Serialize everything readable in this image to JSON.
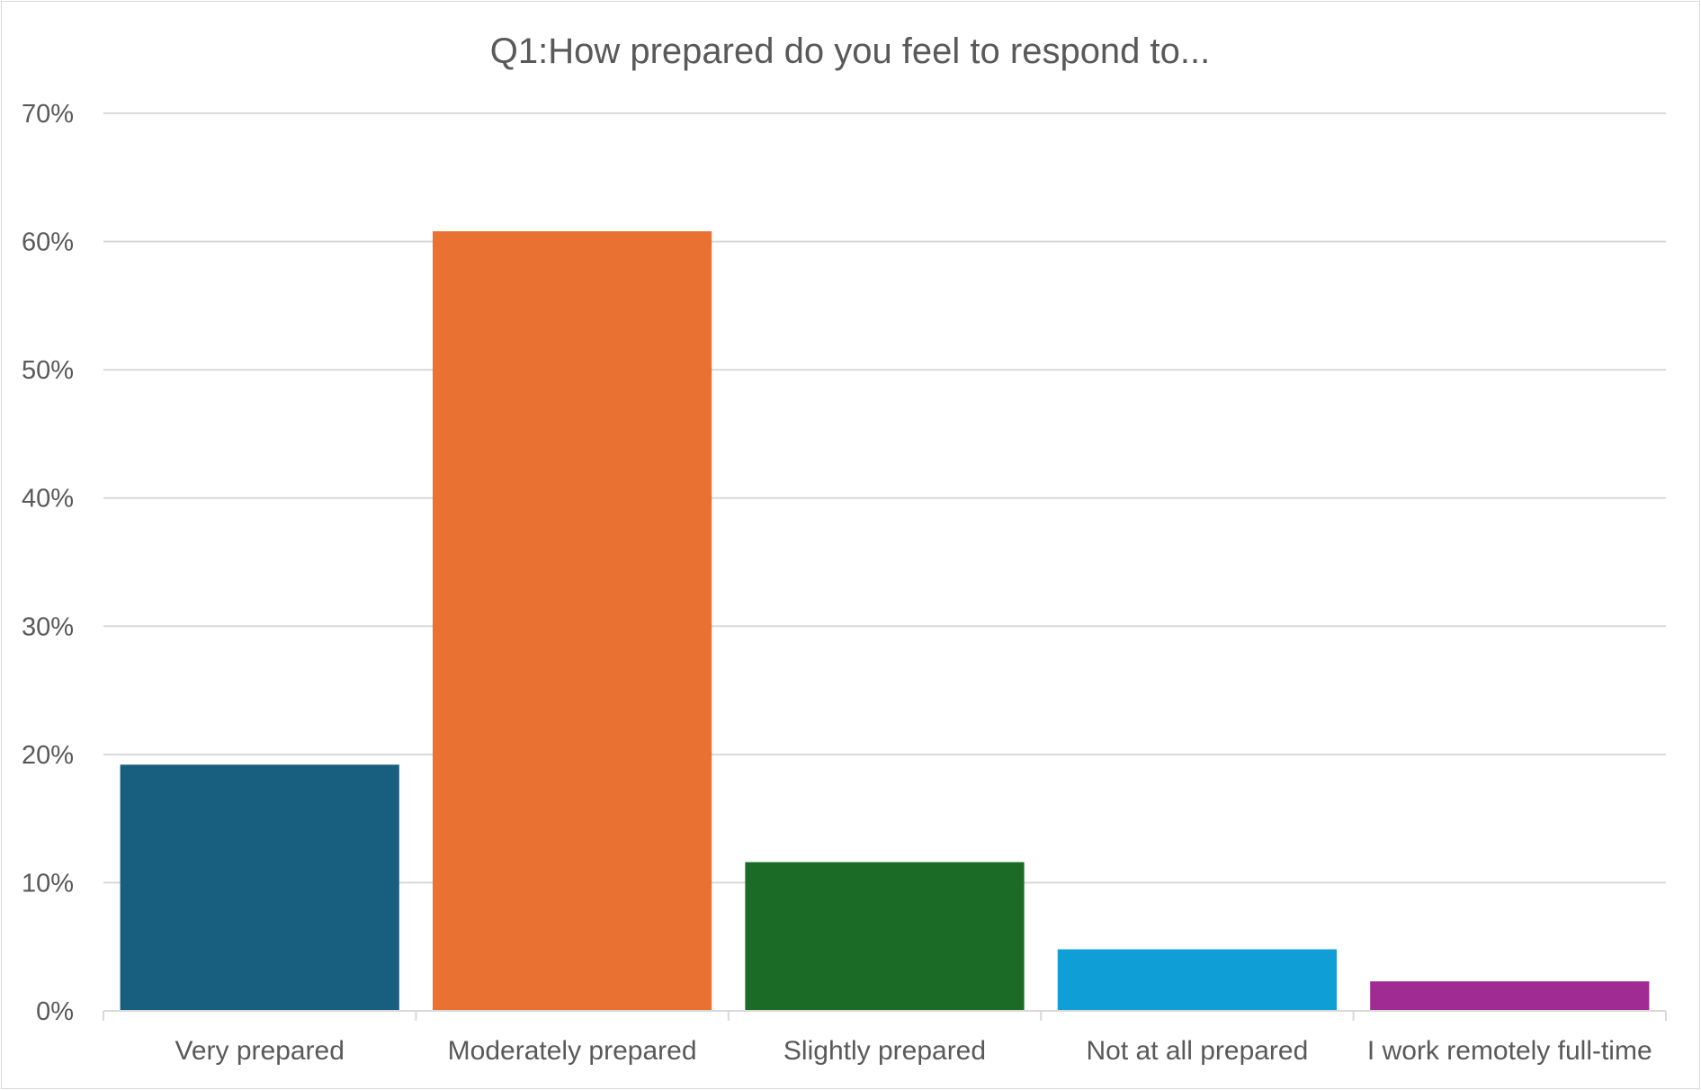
{
  "chart_data": {
    "type": "bar",
    "title": "Q1:How prepared do you feel to respond to...",
    "xlabel": "",
    "ylabel": "",
    "categories": [
      "Very prepared",
      "Moderately prepared",
      "Slightly prepared",
      "Not at all prepared",
      "I work remotely full-time"
    ],
    "values": [
      19.2,
      60.8,
      11.6,
      4.8,
      2.3
    ],
    "colors": [
      "#175e7f",
      "#e97132",
      "#1b6b26",
      "#0f9ed5",
      "#a02b93"
    ],
    "ylim": [
      0,
      70
    ],
    "yticks": [
      0,
      10,
      20,
      30,
      40,
      50,
      60,
      70
    ],
    "ytick_labels": [
      "0%",
      "10%",
      "20%",
      "30%",
      "40%",
      "50%",
      "60%",
      "70%"
    ],
    "grid": true,
    "legend": "none"
  }
}
